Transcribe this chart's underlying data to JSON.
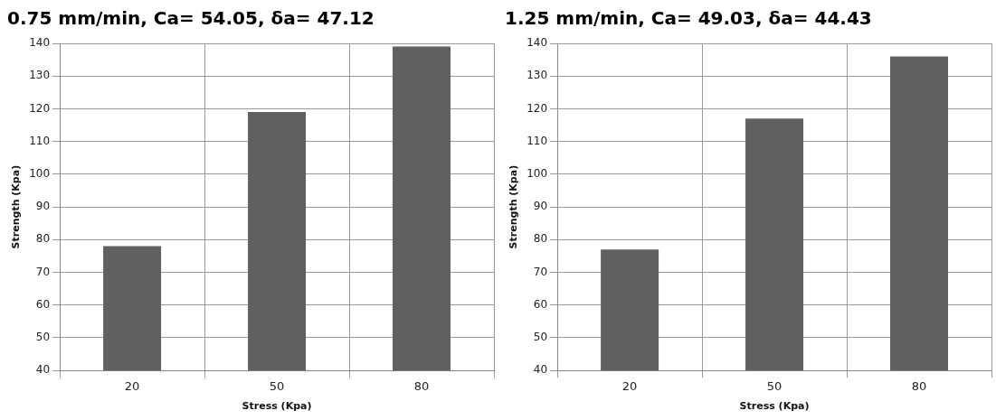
{
  "chart_data": [
    {
      "type": "bar",
      "title": "0.75 mm/min, Ca= 54.05, δa= 47.12",
      "xlabel": "Stress (Kpa)",
      "ylabel": "Strength (Kpa)",
      "categories": [
        "20",
        "50",
        "80"
      ],
      "values": [
        78,
        119,
        139
      ],
      "color": "#606060",
      "ylim": [
        40,
        140
      ],
      "yticks": [
        40,
        50,
        60,
        70,
        80,
        90,
        100,
        110,
        120,
        130,
        140
      ],
      "grid": true
    },
    {
      "type": "bar",
      "title": "1.25 mm/min, Ca= 49.03, δa= 44.43",
      "xlabel": "Stress (Kpa)",
      "ylabel": "Strength (Kpa)",
      "categories": [
        "20",
        "50",
        "80"
      ],
      "values": [
        77,
        117,
        136
      ],
      "color": "#606060",
      "ylim": [
        40,
        140
      ],
      "yticks": [
        40,
        50,
        60,
        70,
        80,
        90,
        100,
        110,
        120,
        130,
        140
      ],
      "grid": true
    }
  ]
}
